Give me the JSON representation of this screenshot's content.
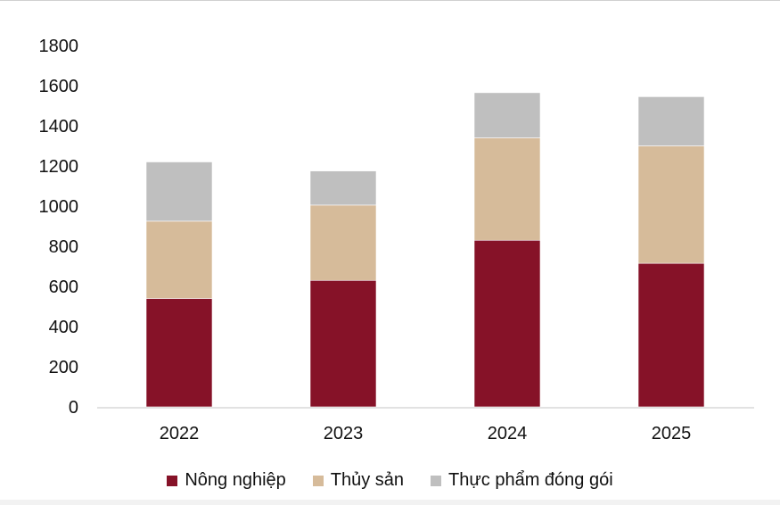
{
  "chart_data": {
    "type": "bar",
    "stacked": true,
    "categories": [
      "2022",
      "2023",
      "2024",
      "2025"
    ],
    "series": [
      {
        "name": "Nông nghiệp",
        "color": "#861228",
        "values": [
          540,
          630,
          830,
          715
        ]
      },
      {
        "name": "Thủy sản",
        "color": "#d6bb9a",
        "values": [
          385,
          375,
          510,
          585
        ]
      },
      {
        "name": "Thực phẩm đóng gói",
        "color": "#bfbfbf",
        "values": [
          295,
          170,
          225,
          245
        ]
      }
    ],
    "ylim": [
      0,
      1800
    ],
    "yticks": [
      "0",
      "200",
      "400",
      "600",
      "800",
      "1000",
      "1200",
      "1400",
      "1600",
      "1800"
    ],
    "grid": false,
    "legend": "bottom",
    "title": "",
    "xlabel": "",
    "ylabel": ""
  }
}
